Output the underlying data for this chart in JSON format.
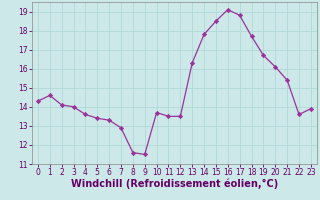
{
  "x": [
    0,
    1,
    2,
    3,
    4,
    5,
    6,
    7,
    8,
    9,
    10,
    11,
    12,
    13,
    14,
    15,
    16,
    17,
    18,
    19,
    20,
    21,
    22,
    23
  ],
  "y": [
    14.3,
    14.6,
    14.1,
    14.0,
    13.6,
    13.4,
    13.3,
    12.9,
    11.6,
    11.5,
    13.7,
    13.5,
    13.5,
    16.3,
    17.8,
    18.5,
    19.1,
    18.8,
    17.7,
    16.7,
    16.1,
    15.4,
    13.6,
    13.9
  ],
  "line_color": "#993399",
  "marker": "D",
  "marker_size": 2.2,
  "bg_color": "#cce8e8",
  "grid_color": "#b0d8d8",
  "xlabel": "Windchill (Refroidissement éolien,°C)",
  "xlabel_color": "#660066",
  "tick_color": "#660066",
  "ylim": [
    11,
    19.5
  ],
  "yticks": [
    11,
    12,
    13,
    14,
    15,
    16,
    17,
    18,
    19
  ],
  "xlim": [
    -0.5,
    23.5
  ],
  "xticks": [
    0,
    1,
    2,
    3,
    4,
    5,
    6,
    7,
    8,
    9,
    10,
    11,
    12,
    13,
    14,
    15,
    16,
    17,
    18,
    19,
    20,
    21,
    22,
    23
  ],
  "tick_fontsize": 5.5,
  "xlabel_fontsize": 7.0,
  "linewidth": 0.9
}
